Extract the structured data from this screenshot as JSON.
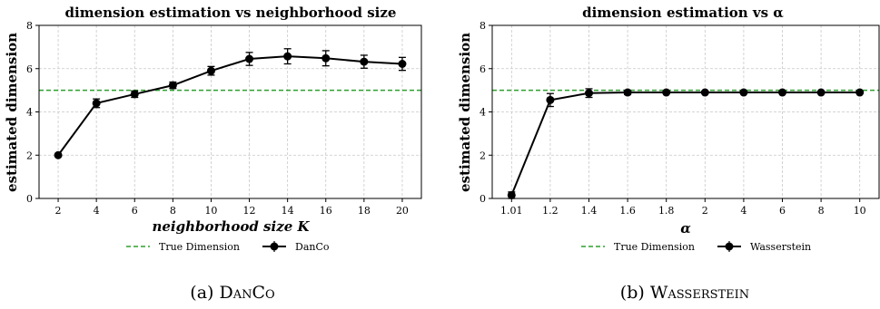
{
  "chart_data": [
    {
      "type": "line",
      "title": "dimension estimation vs neighborhood size",
      "xlabel": "neighborhood size K",
      "ylabel": "estimated dimension",
      "categories": [
        "2",
        "4",
        "6",
        "8",
        "10",
        "12",
        "14",
        "16",
        "18",
        "20"
      ],
      "ylim": [
        0,
        8
      ],
      "yticks": [
        "0",
        "2",
        "4",
        "6",
        "8"
      ],
      "grid": true,
      "legend_placement": "bottom-center",
      "reference_line": {
        "name": "True Dimension",
        "value": 5,
        "color": "#2ca02c"
      },
      "series": [
        {
          "name": "DanCo",
          "color": "#000000",
          "values": [
            2.0,
            4.4,
            4.82,
            5.23,
            5.9,
            6.45,
            6.57,
            6.48,
            6.32,
            6.22
          ],
          "errors": [
            0.0,
            0.2,
            0.15,
            0.15,
            0.2,
            0.3,
            0.35,
            0.35,
            0.3,
            0.3
          ]
        }
      ],
      "caption": "(a) DanCo",
      "caption_prefix": "(a) ",
      "caption_name": "DanCo"
    },
    {
      "type": "line",
      "title": "dimension estimation vs α",
      "xlabel": "α",
      "ylabel": "estimated dimension",
      "categories": [
        "1.01",
        "1.2",
        "1.4",
        "1.6",
        "1.8",
        "2",
        "4",
        "6",
        "8",
        "10"
      ],
      "ylim": [
        0,
        8
      ],
      "yticks": [
        "0",
        "2",
        "4",
        "6",
        "8"
      ],
      "grid": true,
      "legend_placement": "bottom-center",
      "reference_line": {
        "name": "True Dimension",
        "value": 5,
        "color": "#2ca02c"
      },
      "series": [
        {
          "name": "Wasserstein",
          "color": "#000000",
          "values": [
            0.15,
            4.55,
            4.87,
            4.9,
            4.9,
            4.9,
            4.9,
            4.9,
            4.9,
            4.9
          ],
          "errors": [
            0.15,
            0.3,
            0.2,
            0.1,
            0.05,
            0.05,
            0.05,
            0.05,
            0.05,
            0.05
          ]
        }
      ],
      "caption": "(b) Wasserstein",
      "caption_prefix": "(b) ",
      "caption_name": "Wasserstein"
    }
  ]
}
